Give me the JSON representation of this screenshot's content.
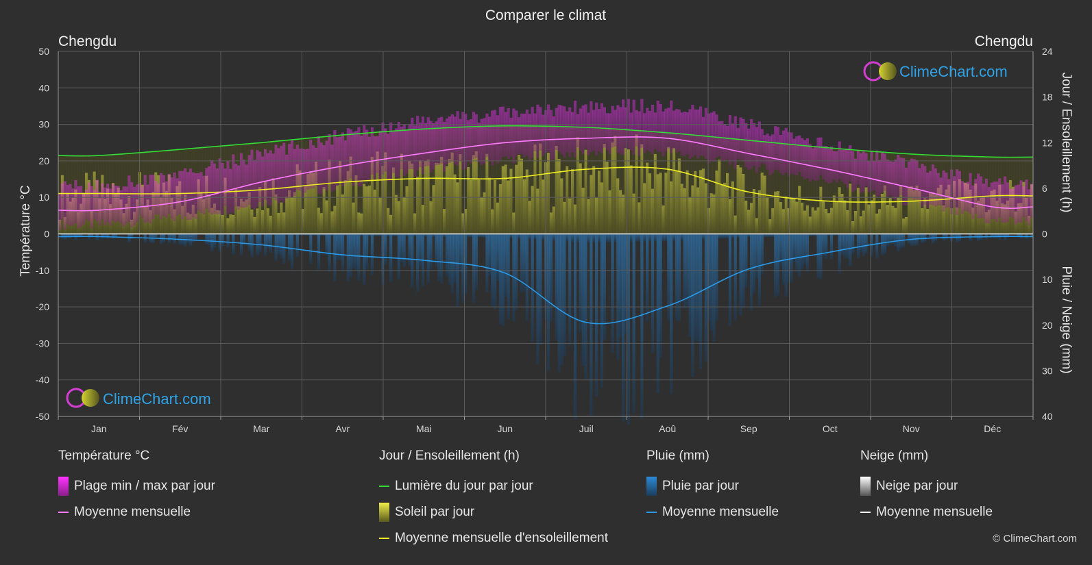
{
  "title": "Comparer le climat",
  "location_left": "Chengdu",
  "location_right": "Chengdu",
  "brand": "ClimeChart.com",
  "copyright": "© ClimeChart.com",
  "chart_data": {
    "type": "area",
    "months": [
      "Jan",
      "Fév",
      "Mar",
      "Avr",
      "Mai",
      "Jun",
      "Juil",
      "Aoû",
      "Sep",
      "Oct",
      "Nov",
      "Déc"
    ],
    "y_left": {
      "label": "Température °C",
      "range": [
        -50,
        50
      ],
      "ticks": [
        50,
        40,
        30,
        20,
        10,
        0,
        -10,
        -20,
        -30,
        -40,
        -50
      ]
    },
    "y_right_top": {
      "label": "Jour / Ensoleillement (h)",
      "range": [
        0,
        24
      ],
      "ticks": [
        24,
        18,
        12,
        6,
        0
      ]
    },
    "y_right_bottom": {
      "label": "Pluie / Neige (mm)",
      "range": [
        0,
        40
      ],
      "ticks": [
        0,
        10,
        20,
        30,
        40
      ]
    },
    "series": [
      {
        "name": "Moyenne mensuelle",
        "group": "Température °C",
        "unit": "°C",
        "color": "#ff7bff",
        "values": [
          6.5,
          8.8,
          14.2,
          18.6,
          22.1,
          25.0,
          26.2,
          26.2,
          22.0,
          17.6,
          12.6,
          7.4
        ]
      },
      {
        "name": "Lumière du jour par jour",
        "group": "Jour / Ensoleillement (h)",
        "unit": "h",
        "color": "#33dd33",
        "values": [
          10.3,
          11.1,
          12.0,
          13.0,
          13.8,
          14.2,
          14.0,
          13.3,
          12.3,
          11.3,
          10.5,
          10.1
        ]
      },
      {
        "name": "Moyenne mensuelle d'ensoleillement",
        "group": "Jour / Ensoleillement (h)",
        "unit": "h",
        "color": "#eeee22",
        "values": [
          5.3,
          5.3,
          5.8,
          6.8,
          7.3,
          7.3,
          8.5,
          8.5,
          5.5,
          4.3,
          4.3,
          5.0
        ]
      },
      {
        "name": "Moyenne mensuelle",
        "group": "Pluie (mm)",
        "unit": "mm",
        "color": "#2a9ae8",
        "values": [
          0.6,
          1.2,
          2.4,
          4.6,
          5.8,
          8.6,
          19.4,
          15.8,
          7.7,
          4.0,
          1.2,
          0.6
        ]
      },
      {
        "name": "Moyenne mensuelle",
        "group": "Neige (mm)",
        "unit": "mm",
        "color": "#ffffff",
        "values": [
          0,
          0,
          0,
          0,
          0,
          0,
          0,
          0,
          0,
          0,
          0,
          0
        ]
      }
    ],
    "temperature_range_daily": {
      "min": [
        3,
        5,
        9,
        14,
        18,
        21,
        23,
        23,
        19,
        15,
        9,
        4
      ],
      "max": [
        10,
        13,
        19,
        24,
        28,
        30,
        32,
        32,
        27,
        21,
        16,
        11
      ]
    }
  },
  "legend": [
    {
      "heading": "Température °C",
      "items": [
        {
          "label": "Plage min / max par jour",
          "swatch": "box",
          "color": "#e23be2"
        },
        {
          "label": "Moyenne mensuelle",
          "swatch": "line",
          "color": "#ff7bff"
        }
      ]
    },
    {
      "heading": "Jour / Ensoleillement (h)",
      "items": [
        {
          "label": "Lumière du jour par jour",
          "swatch": "line",
          "color": "#33dd33"
        },
        {
          "label": "Soleil par jour",
          "swatch": "box",
          "color": "#d4d42a"
        },
        {
          "label": "Moyenne mensuelle d'ensoleillement",
          "swatch": "line",
          "color": "#eeee22"
        }
      ]
    },
    {
      "heading": "Pluie (mm)",
      "items": [
        {
          "label": "Pluie par jour",
          "swatch": "box",
          "color": "#2d86d0"
        },
        {
          "label": "Moyenne mensuelle",
          "swatch": "line",
          "color": "#2a9ae8"
        }
      ]
    },
    {
      "heading": "Neige (mm)",
      "items": [
        {
          "label": "Neige par jour",
          "swatch": "box",
          "color": "#dcdcdc"
        },
        {
          "label": "Moyenne mensuelle",
          "swatch": "line",
          "color": "#ffffff"
        }
      ]
    }
  ]
}
